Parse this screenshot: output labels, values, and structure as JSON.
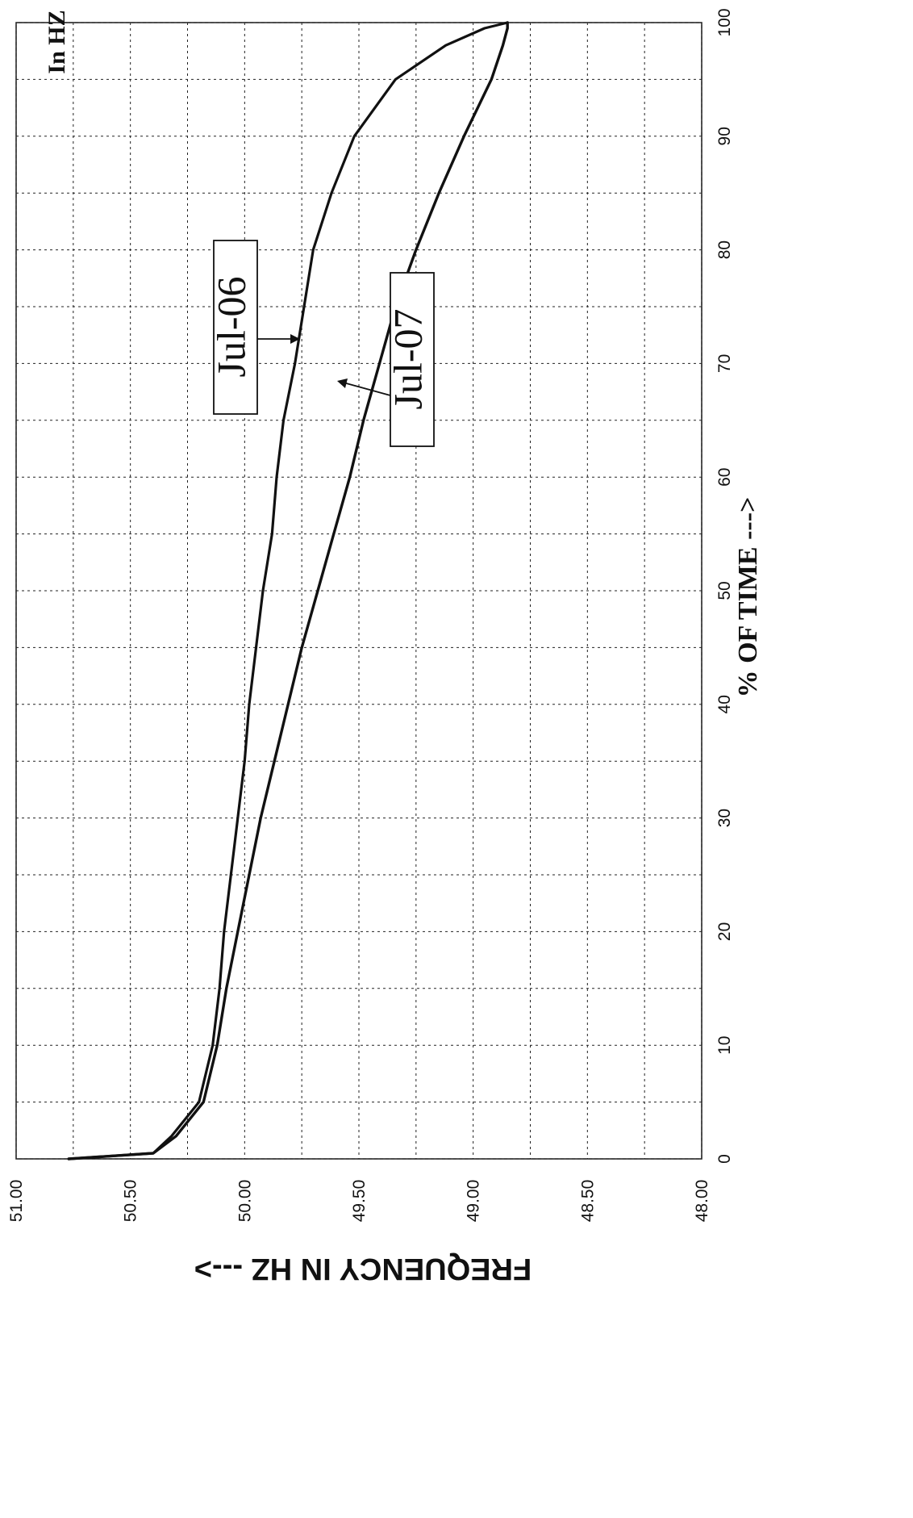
{
  "chart_data": {
    "type": "line",
    "orientation": "rotated-90-clockwise",
    "corner_label": "In HZ",
    "ylabel": "FREQUENCY IN HZ --->",
    "xlabel": "% OF TIME --->",
    "xlim": [
      0,
      100
    ],
    "ylim": [
      48.0,
      51.0
    ],
    "x_ticks": [
      "0",
      "10",
      "20",
      "30",
      "40",
      "50",
      "60",
      "70",
      "80",
      "90",
      "100"
    ],
    "y_ticks": [
      "51.00",
      "50.50",
      "50.00",
      "49.50",
      "49.00",
      "48.50",
      "48.00"
    ],
    "grid": true,
    "series": [
      {
        "name": "Jul-06",
        "x": [
          0,
          0.5,
          2,
          5,
          10,
          15,
          20,
          25,
          30,
          35,
          40,
          45,
          50,
          55,
          60,
          65,
          70,
          75,
          80,
          85,
          90,
          95,
          98,
          99.5,
          100
        ],
        "y": [
          50.77,
          50.4,
          50.32,
          50.2,
          50.14,
          50.11,
          50.09,
          50.06,
          50.03,
          50.0,
          49.98,
          49.95,
          49.92,
          49.88,
          49.86,
          49.83,
          49.78,
          49.74,
          49.7,
          49.62,
          49.52,
          49.34,
          49.12,
          48.95,
          48.85
        ]
      },
      {
        "name": "Jul-07",
        "x": [
          0,
          0.5,
          2,
          5,
          10,
          15,
          20,
          25,
          30,
          35,
          40,
          45,
          50,
          55,
          60,
          65,
          70,
          75,
          80,
          85,
          90,
          95,
          98,
          99.5,
          100
        ],
        "y": [
          50.77,
          50.4,
          50.3,
          50.18,
          50.12,
          50.08,
          50.03,
          49.98,
          49.93,
          49.87,
          49.81,
          49.75,
          49.68,
          49.61,
          49.54,
          49.48,
          49.41,
          49.34,
          49.25,
          49.15,
          49.04,
          48.92,
          48.87,
          48.85,
          48.85
        ]
      }
    ],
    "annotations": [
      "Jul-06",
      "Jul-07"
    ]
  }
}
